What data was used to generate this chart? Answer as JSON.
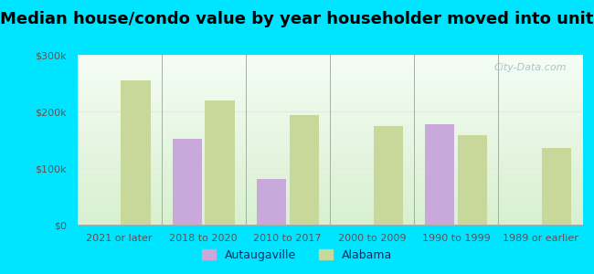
{
  "title": "Median house/condo value by year householder moved into unit",
  "categories": [
    "2021 or later",
    "2018 to 2020",
    "2010 to 2017",
    "2000 to 2009",
    "1990 to 1999",
    "1989 or earlier"
  ],
  "autaugaville": [
    null,
    152000,
    80000,
    null,
    178000,
    null
  ],
  "alabama": [
    255000,
    220000,
    193000,
    175000,
    158000,
    135000
  ],
  "autaugaville_color": "#c9a8dc",
  "alabama_color": "#c8d89a",
  "background_outer": "#00e5ff",
  "ylim": [
    0,
    300000
  ],
  "yticks": [
    0,
    100000,
    200000,
    300000
  ],
  "ytick_labels": [
    "$0",
    "$100k",
    "$200k",
    "$300k"
  ],
  "bar_width": 0.35,
  "legend_autaugaville": "Autaugaville",
  "legend_alabama": "Alabama",
  "title_fontsize": 13,
  "watermark": "City-Data.com",
  "plot_bg_top": "#f5fdf5",
  "plot_bg_bottom": "#d8f0d0",
  "grid_color": "#e0eee0",
  "tick_label_color": "#555555",
  "tick_label_fontsize": 8
}
